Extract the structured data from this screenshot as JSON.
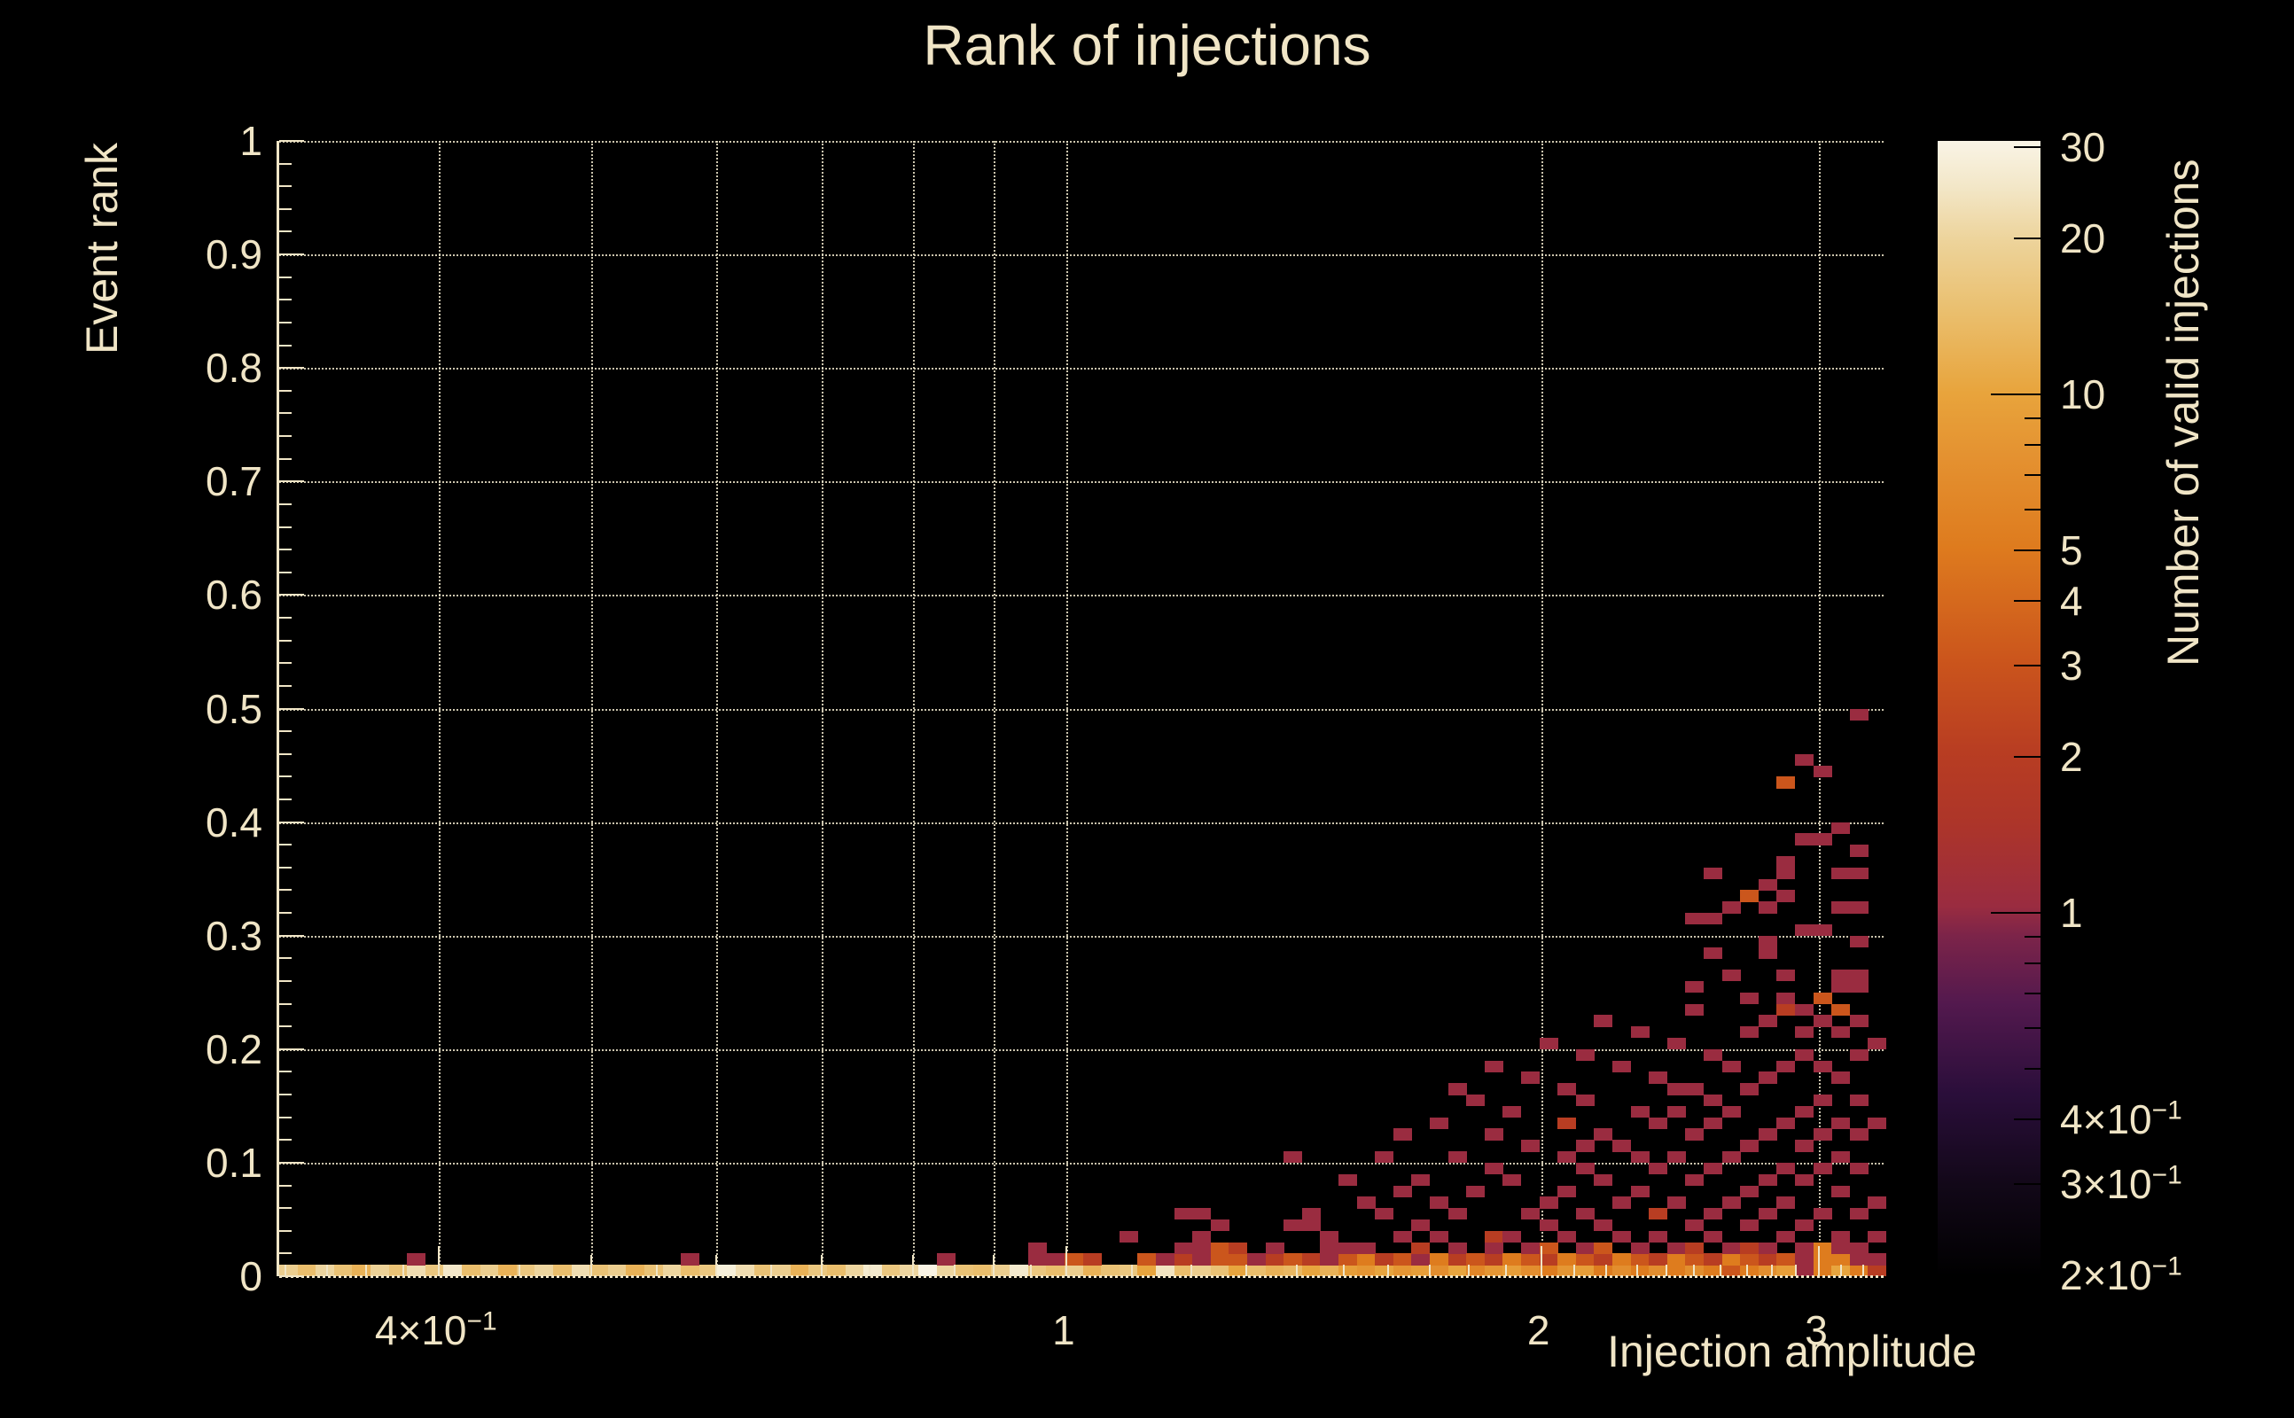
{
  "title": "Rank of injections",
  "colors": {
    "background": "#000000",
    "text": "#f0e5c6",
    "grid": "#efe7cd",
    "axis": "#f0e5c6",
    "colorbar_tick": "#000000"
  },
  "chart_data": {
    "type": "heatmap",
    "title": "Rank of injections",
    "xlabel": "Injection amplitude",
    "ylabel": "Event rank",
    "zlabel": "Number of valid injections",
    "x_scale": "log",
    "z_scale": "log",
    "x_range": [
      0.317,
      3.31
    ],
    "y_range": [
      0,
      1
    ],
    "z_range": [
      0.19,
      30.5
    ],
    "nx": 88,
    "ny": 100,
    "grid": true,
    "x_ticks": [
      {
        "v": 0.4,
        "m": "4×10",
        "e": "−1"
      },
      {
        "v": 1,
        "m": "1",
        "e": ""
      },
      {
        "v": 2,
        "m": "2",
        "e": ""
      },
      {
        "v": 3,
        "m": "3",
        "e": ""
      }
    ],
    "x_ticks_medium": [
      0.5,
      0.6,
      0.7,
      0.8,
      0.9
    ],
    "x_ticks_minor": [
      0.32,
      0.34,
      0.36,
      0.38,
      0.45,
      0.55,
      0.65,
      0.75,
      0.85,
      0.95,
      1.1,
      1.2,
      1.3,
      1.4,
      1.5,
      1.6,
      1.7,
      1.8,
      1.9,
      2.1,
      2.2,
      2.3,
      2.4,
      2.5,
      2.6,
      2.7,
      2.8,
      2.9,
      3.1,
      3.2
    ],
    "y_ticks": [
      {
        "v": 0,
        "label": "0"
      },
      {
        "v": 0.1,
        "label": "0.1"
      },
      {
        "v": 0.2,
        "label": "0.2"
      },
      {
        "v": 0.3,
        "label": "0.3"
      },
      {
        "v": 0.4,
        "label": "0.4"
      },
      {
        "v": 0.5,
        "label": "0.5"
      },
      {
        "v": 0.6,
        "label": "0.6"
      },
      {
        "v": 0.7,
        "label": "0.7"
      },
      {
        "v": 0.8,
        "label": "0.8"
      },
      {
        "v": 0.9,
        "label": "0.9"
      },
      {
        "v": 1,
        "label": "1"
      }
    ],
    "y_minor_step": 0.02,
    "z_ticks": [
      {
        "v": 30,
        "m": "30",
        "e": ""
      },
      {
        "v": 20,
        "m": "20",
        "e": ""
      },
      {
        "v": 10,
        "m": "10",
        "e": ""
      },
      {
        "v": 5,
        "m": "5",
        "e": ""
      },
      {
        "v": 4,
        "m": "4",
        "e": ""
      },
      {
        "v": 3,
        "m": "3",
        "e": ""
      },
      {
        "v": 2,
        "m": "2",
        "e": ""
      },
      {
        "v": 1,
        "m": "1",
        "e": ""
      },
      {
        "v": 0.4,
        "m": "4×10",
        "e": "−1"
      },
      {
        "v": 0.3,
        "m": "3×10",
        "e": "−1"
      },
      {
        "v": 0.2,
        "m": "2×10",
        "e": "−1"
      }
    ],
    "z_ticks_minor": [
      0.5,
      0.6,
      0.7,
      0.8,
      0.9,
      6,
      7,
      8,
      9
    ],
    "palette": [
      [
        0.0,
        "#000000"
      ],
      [
        0.08,
        "#120818"
      ],
      [
        0.16,
        "#2a0e3a"
      ],
      [
        0.24,
        "#53194e"
      ],
      [
        0.3,
        "#7c2449"
      ],
      [
        0.326,
        "#9a2c40"
      ],
      [
        0.4,
        "#ad3529"
      ],
      [
        0.462,
        "#b83d22"
      ],
      [
        0.542,
        "#cb551c"
      ],
      [
        0.642,
        "#de7b1e"
      ],
      [
        0.72,
        "#e49130"
      ],
      [
        0.778,
        "#e8a43c"
      ],
      [
        0.85,
        "#eabf6e"
      ],
      [
        0.914,
        "#edd49c"
      ],
      [
        0.96,
        "#f3e7c8"
      ],
      [
        1.0,
        "#f9f4e6"
      ]
    ],
    "bottom_row": [
      18,
      14,
      20,
      15,
      12,
      19,
      15,
      22,
      16,
      25,
      14,
      18,
      12,
      16,
      20,
      14,
      22,
      15,
      18,
      12,
      15,
      20,
      14,
      16,
      28,
      22,
      15,
      18,
      12,
      16,
      14,
      20,
      26,
      16,
      20,
      30,
      20,
      15,
      14,
      18,
      26,
      16,
      14,
      18,
      12,
      15,
      16,
      10,
      24,
      14,
      18,
      15,
      10,
      14,
      12,
      13,
      10,
      12,
      9,
      8,
      10,
      8,
      9,
      7,
      10,
      6,
      8,
      9,
      7,
      5,
      8,
      9,
      5,
      7,
      5,
      7,
      5,
      7,
      5,
      3,
      5,
      7,
      9,
      1,
      5,
      10,
      5,
      2
    ],
    "cells": [
      [
        7,
        1,
        1
      ],
      [
        22,
        1,
        1
      ],
      [
        36,
        1,
        1
      ],
      [
        41,
        1,
        1
      ],
      [
        41,
        2,
        1
      ],
      [
        42,
        1,
        1
      ],
      [
        43,
        1,
        3
      ],
      [
        44,
        1,
        2
      ],
      [
        46,
        3,
        1
      ],
      [
        47,
        1,
        3
      ],
      [
        48,
        1,
        1
      ],
      [
        49,
        1,
        2
      ],
      [
        49,
        2,
        1
      ],
      [
        49,
        5,
        1
      ],
      [
        50,
        1,
        1
      ],
      [
        50,
        2,
        1
      ],
      [
        50,
        3,
        1
      ],
      [
        50,
        5,
        1
      ],
      [
        51,
        1,
        3
      ],
      [
        51,
        2,
        3
      ],
      [
        51,
        4,
        1
      ],
      [
        52,
        1,
        3
      ],
      [
        52,
        2,
        2
      ],
      [
        53,
        1,
        1
      ],
      [
        54,
        1,
        2
      ],
      [
        54,
        2,
        1
      ],
      [
        55,
        1,
        3
      ],
      [
        55,
        4,
        1
      ],
      [
        55,
        10,
        1
      ],
      [
        56,
        1,
        2
      ],
      [
        56,
        4,
        1
      ],
      [
        56,
        5,
        1
      ],
      [
        57,
        1,
        1
      ],
      [
        57,
        2,
        1
      ],
      [
        57,
        3,
        1
      ],
      [
        58,
        1,
        3
      ],
      [
        58,
        2,
        1
      ],
      [
        58,
        8,
        1
      ],
      [
        59,
        1,
        5
      ],
      [
        59,
        2,
        1
      ],
      [
        59,
        6,
        1
      ],
      [
        60,
        1,
        2
      ],
      [
        60,
        5,
        1
      ],
      [
        60,
        10,
        1
      ],
      [
        61,
        1,
        3
      ],
      [
        61,
        3,
        1
      ],
      [
        61,
        7,
        1
      ],
      [
        61,
        12,
        1
      ],
      [
        62,
        1,
        1
      ],
      [
        62,
        2,
        2
      ],
      [
        62,
        4,
        1
      ],
      [
        62,
        8,
        1
      ],
      [
        63,
        1,
        5
      ],
      [
        63,
        3,
        1
      ],
      [
        63,
        6,
        1
      ],
      [
        63,
        13,
        1
      ],
      [
        64,
        1,
        2
      ],
      [
        64,
        2,
        1
      ],
      [
        64,
        5,
        1
      ],
      [
        64,
        10,
        1
      ],
      [
        64,
        16,
        1
      ],
      [
        65,
        1,
        3
      ],
      [
        65,
        7,
        1
      ],
      [
        65,
        15,
        1
      ],
      [
        66,
        1,
        2
      ],
      [
        66,
        2,
        1
      ],
      [
        66,
        3,
        2
      ],
      [
        66,
        9,
        1
      ],
      [
        66,
        12,
        1
      ],
      [
        66,
        18,
        1
      ],
      [
        67,
        1,
        5
      ],
      [
        67,
        3,
        1
      ],
      [
        67,
        8,
        1
      ],
      [
        67,
        14,
        1
      ],
      [
        68,
        1,
        3
      ],
      [
        68,
        2,
        1
      ],
      [
        68,
        5,
        1
      ],
      [
        68,
        11,
        1
      ],
      [
        68,
        17,
        1
      ],
      [
        69,
        1,
        2
      ],
      [
        69,
        2,
        3
      ],
      [
        69,
        4,
        1
      ],
      [
        69,
        6,
        1
      ],
      [
        69,
        20,
        1
      ],
      [
        70,
        1,
        5
      ],
      [
        70,
        3,
        1
      ],
      [
        70,
        7,
        1
      ],
      [
        70,
        10,
        1
      ],
      [
        70,
        13,
        2
      ],
      [
        70,
        16,
        1
      ],
      [
        71,
        1,
        3
      ],
      [
        71,
        2,
        1
      ],
      [
        71,
        5,
        1
      ],
      [
        71,
        9,
        1
      ],
      [
        71,
        11,
        1
      ],
      [
        71,
        15,
        1
      ],
      [
        71,
        19,
        1
      ],
      [
        72,
        1,
        2
      ],
      [
        72,
        2,
        3
      ],
      [
        72,
        4,
        1
      ],
      [
        72,
        8,
        1
      ],
      [
        72,
        12,
        1
      ],
      [
        72,
        22,
        1
      ],
      [
        73,
        1,
        5
      ],
      [
        73,
        3,
        1
      ],
      [
        73,
        6,
        1
      ],
      [
        73,
        11,
        1
      ],
      [
        73,
        18,
        1
      ],
      [
        74,
        1,
        3
      ],
      [
        74,
        2,
        1
      ],
      [
        74,
        7,
        1
      ],
      [
        74,
        10,
        1
      ],
      [
        74,
        14,
        1
      ],
      [
        74,
        21,
        1
      ],
      [
        75,
        1,
        2
      ],
      [
        75,
        3,
        1
      ],
      [
        75,
        5,
        2
      ],
      [
        75,
        9,
        1
      ],
      [
        75,
        13,
        1
      ],
      [
        75,
        17,
        1
      ],
      [
        76,
        1,
        5
      ],
      [
        76,
        2,
        1
      ],
      [
        76,
        6,
        1
      ],
      [
        76,
        10,
        1
      ],
      [
        76,
        14,
        1
      ],
      [
        76,
        16,
        1
      ],
      [
        76,
        20,
        1
      ],
      [
        77,
        1,
        3
      ],
      [
        77,
        2,
        2
      ],
      [
        77,
        4,
        1
      ],
      [
        77,
        8,
        1
      ],
      [
        77,
        12,
        1
      ],
      [
        77,
        16,
        1
      ],
      [
        77,
        23,
        1
      ],
      [
        77,
        25,
        1
      ],
      [
        77,
        31,
        1
      ],
      [
        78,
        1,
        2
      ],
      [
        78,
        3,
        1
      ],
      [
        78,
        5,
        1
      ],
      [
        78,
        9,
        1
      ],
      [
        78,
        13,
        1
      ],
      [
        78,
        15,
        1
      ],
      [
        78,
        19,
        1
      ],
      [
        78,
        28,
        1
      ],
      [
        78,
        31,
        1
      ],
      [
        78,
        35,
        1
      ],
      [
        79,
        1,
        5
      ],
      [
        79,
        2,
        1
      ],
      [
        79,
        6,
        1
      ],
      [
        79,
        10,
        1
      ],
      [
        79,
        14,
        1
      ],
      [
        79,
        18,
        1
      ],
      [
        79,
        26,
        1
      ],
      [
        79,
        32,
        1
      ],
      [
        80,
        1,
        3
      ],
      [
        80,
        2,
        2
      ],
      [
        80,
        4,
        1
      ],
      [
        80,
        7,
        1
      ],
      [
        80,
        11,
        1
      ],
      [
        80,
        16,
        1
      ],
      [
        80,
        21,
        1
      ],
      [
        80,
        24,
        1
      ],
      [
        80,
        33,
        3
      ],
      [
        81,
        1,
        2
      ],
      [
        81,
        2,
        1
      ],
      [
        81,
        5,
        1
      ],
      [
        81,
        8,
        1
      ],
      [
        81,
        12,
        1
      ],
      [
        81,
        17,
        1
      ],
      [
        81,
        22,
        1
      ],
      [
        81,
        28,
        1
      ],
      [
        81,
        29,
        1
      ],
      [
        81,
        32,
        1
      ],
      [
        81,
        34,
        1
      ],
      [
        82,
        1,
        3
      ],
      [
        82,
        3,
        1
      ],
      [
        82,
        6,
        1
      ],
      [
        82,
        9,
        1
      ],
      [
        82,
        13,
        1
      ],
      [
        82,
        18,
        1
      ],
      [
        82,
        23,
        2
      ],
      [
        82,
        24,
        1
      ],
      [
        82,
        26,
        1
      ],
      [
        82,
        33,
        1
      ],
      [
        82,
        35,
        1
      ],
      [
        82,
        36,
        1
      ],
      [
        82,
        43,
        3
      ],
      [
        83,
        1,
        1
      ],
      [
        83,
        2,
        1
      ],
      [
        83,
        4,
        1
      ],
      [
        83,
        8,
        1
      ],
      [
        83,
        11,
        1
      ],
      [
        83,
        14,
        1
      ],
      [
        83,
        19,
        1
      ],
      [
        83,
        21,
        1
      ],
      [
        83,
        23,
        1
      ],
      [
        83,
        30,
        1
      ],
      [
        83,
        38,
        1
      ],
      [
        83,
        45,
        1
      ],
      [
        84,
        1,
        5
      ],
      [
        84,
        2,
        5
      ],
      [
        84,
        5,
        1
      ],
      [
        84,
        9,
        1
      ],
      [
        84,
        12,
        1
      ],
      [
        84,
        15,
        1
      ],
      [
        84,
        18,
        1
      ],
      [
        84,
        22,
        1
      ],
      [
        84,
        24,
        3
      ],
      [
        84,
        30,
        1
      ],
      [
        84,
        38,
        1
      ],
      [
        84,
        44,
        1
      ],
      [
        85,
        1,
        5
      ],
      [
        85,
        2,
        1
      ],
      [
        85,
        3,
        1
      ],
      [
        85,
        7,
        1
      ],
      [
        85,
        10,
        1
      ],
      [
        85,
        13,
        1
      ],
      [
        85,
        17,
        1
      ],
      [
        85,
        21,
        1
      ],
      [
        85,
        23,
        3
      ],
      [
        85,
        25,
        1
      ],
      [
        85,
        26,
        1
      ],
      [
        85,
        32,
        1
      ],
      [
        85,
        35,
        1
      ],
      [
        85,
        39,
        1
      ],
      [
        86,
        1,
        1
      ],
      [
        86,
        2,
        1
      ],
      [
        86,
        5,
        1
      ],
      [
        86,
        9,
        1
      ],
      [
        86,
        12,
        1
      ],
      [
        86,
        15,
        1
      ],
      [
        86,
        19,
        1
      ],
      [
        86,
        22,
        1
      ],
      [
        86,
        25,
        1
      ],
      [
        86,
        26,
        1
      ],
      [
        86,
        29,
        1
      ],
      [
        86,
        32,
        1
      ],
      [
        86,
        35,
        1
      ],
      [
        86,
        37,
        1
      ],
      [
        86,
        49,
        1
      ],
      [
        87,
        1,
        1
      ],
      [
        87,
        3,
        1
      ],
      [
        87,
        6,
        1
      ],
      [
        87,
        13,
        1
      ],
      [
        87,
        20,
        1
      ]
    ]
  }
}
